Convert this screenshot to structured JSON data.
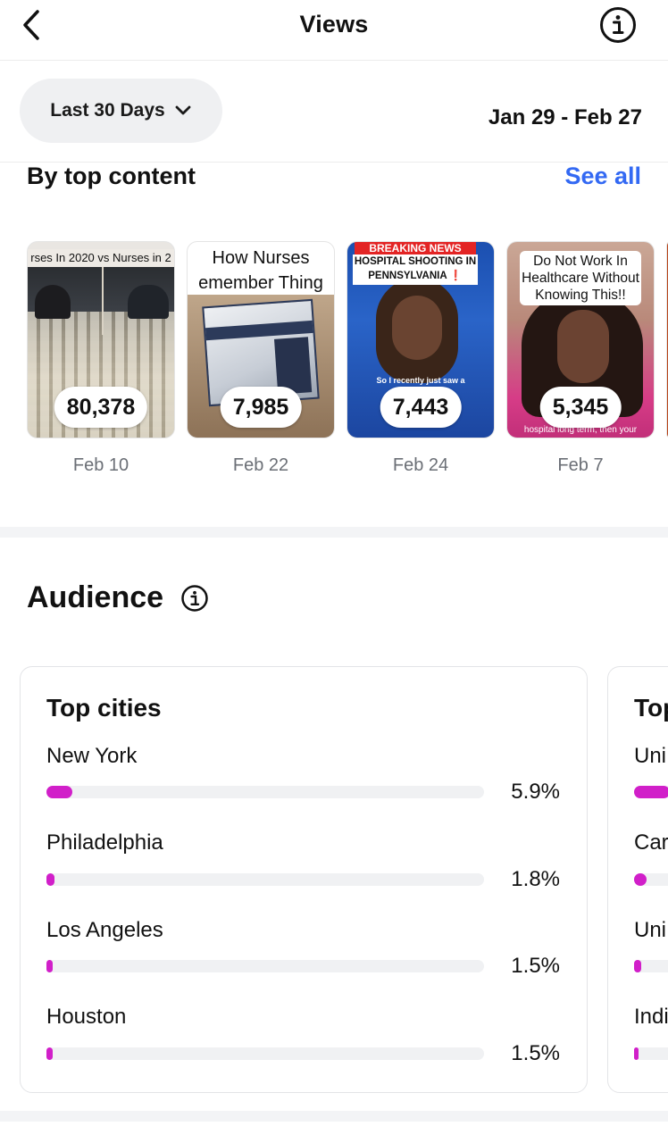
{
  "header": {
    "title": "Views",
    "back_icon": "chevron-left-icon",
    "info_icon": "info-circle-icon"
  },
  "filter": {
    "range_label": "Last 30 Days",
    "dropdown_icon": "chevron-down-icon",
    "date_range": "Jan 29 - Feb 27"
  },
  "top_content": {
    "title": "By top content",
    "see_all": "See all",
    "items": [
      {
        "count": "80,378",
        "date": "Feb 10",
        "caption": "rses In 2020 vs Nurses in 2"
      },
      {
        "count": "7,985",
        "date": "Feb 22",
        "caption": "How Nurses\nemember Thing"
      },
      {
        "count": "7,443",
        "date": "Feb 24",
        "breaking": "BREAKING NEWS",
        "caption": "HOSPITAL SHOOTING IN PENNSYLVANIA ❗",
        "sub": "So I recently just saw a"
      },
      {
        "count": "5,345",
        "date": "Feb 7",
        "caption": "Do Not Work In Healthcare Without Knowing This!!",
        "sub": "hospital long term, then your"
      }
    ]
  },
  "audience": {
    "title": "Audience",
    "info_icon": "info-circle-icon",
    "cities": {
      "title": "Top cities",
      "rows": [
        {
          "label": "New York",
          "pct": "5.9%",
          "fraction": 0.059
        },
        {
          "label": "Philadelphia",
          "pct": "1.8%",
          "fraction": 0.018
        },
        {
          "label": "Los Angeles",
          "pct": "1.5%",
          "fraction": 0.015
        },
        {
          "label": "Houston",
          "pct": "1.5%",
          "fraction": 0.015
        }
      ]
    },
    "countries": {
      "title": "Top",
      "rows": [
        {
          "label": "Uni"
        },
        {
          "label": "Car"
        },
        {
          "label": "Uni"
        },
        {
          "label": "Indi"
        }
      ]
    },
    "bar_color": "#d11fc9"
  }
}
